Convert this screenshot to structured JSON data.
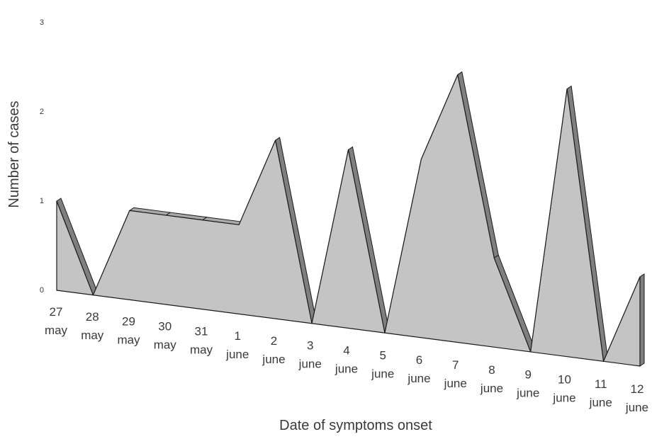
{
  "chart_data": {
    "type": "area",
    "title": "",
    "xlabel": "Date of symptoms onset",
    "ylabel": "Number of cases",
    "ylim": [
      0,
      3
    ],
    "yticks": [
      "0",
      "1",
      "2",
      "3"
    ],
    "categories": [
      [
        "27",
        "may"
      ],
      [
        "28",
        "may"
      ],
      [
        "29",
        "may"
      ],
      [
        "30",
        "may"
      ],
      [
        "31",
        "may"
      ],
      [
        "1",
        "june"
      ],
      [
        "2",
        "june"
      ],
      [
        "3",
        "june"
      ],
      [
        "4",
        "june"
      ],
      [
        "5",
        "june"
      ],
      [
        "6",
        "june"
      ],
      [
        "7",
        "june"
      ],
      [
        "8",
        "june"
      ],
      [
        "9",
        "june"
      ],
      [
        "10",
        "june"
      ],
      [
        "11",
        "june"
      ],
      [
        "12",
        "june"
      ]
    ],
    "series": [
      {
        "values": [
          1,
          0,
          1,
          1,
          1,
          1,
          2,
          0,
          2,
          0,
          2,
          3,
          1,
          0,
          3,
          0,
          1
        ]
      }
    ],
    "grid": false,
    "style": {
      "fill": "#c4c4c4",
      "side": "#7f7f7f",
      "stroke": "#1a1a1a"
    }
  }
}
